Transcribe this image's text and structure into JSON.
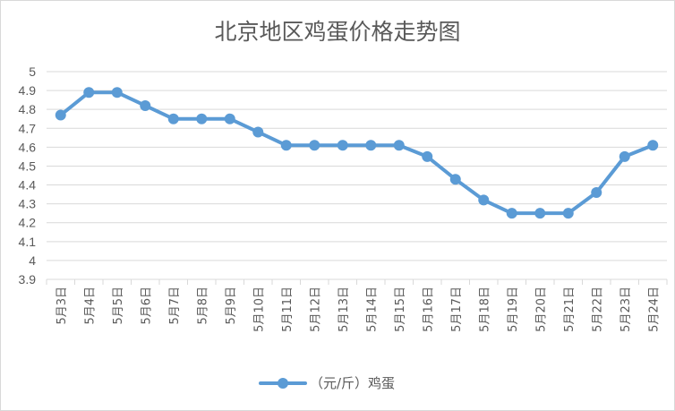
{
  "chart_data": {
    "type": "line",
    "title": "北京地区鸡蛋价格走势图",
    "xlabel": "",
    "ylabel": "",
    "categories": [
      "5月3日",
      "5月4日",
      "5月5日",
      "5月6日",
      "5月7日",
      "5月8日",
      "5月9日",
      "5月10日",
      "5月11日",
      "5月12日",
      "5月13日",
      "5月14日",
      "5月15日",
      "5月16日",
      "5月17日",
      "5月18日",
      "5月19日",
      "5月20日",
      "5月21日",
      "5月22日",
      "5月23日",
      "5月24日"
    ],
    "series": [
      {
        "name": "（元/斤）鸡蛋",
        "values": [
          4.77,
          4.89,
          4.89,
          4.82,
          4.75,
          4.75,
          4.75,
          4.68,
          4.61,
          4.61,
          4.61,
          4.61,
          4.61,
          4.55,
          4.43,
          4.32,
          4.25,
          4.25,
          4.25,
          4.36,
          4.55,
          4.61
        ],
        "color": "#5b9bd5"
      }
    ],
    "ylim": [
      3.9,
      5
    ],
    "yticks": [
      "5",
      "4.9",
      "4.8",
      "4.7",
      "4.6",
      "4.5",
      "4.4",
      "4.3",
      "4.2",
      "4.1",
      "4",
      "3.9"
    ],
    "grid": true,
    "legend": "bottom",
    "gridColor": "#d9d9d9",
    "textColor": "#595959"
  }
}
